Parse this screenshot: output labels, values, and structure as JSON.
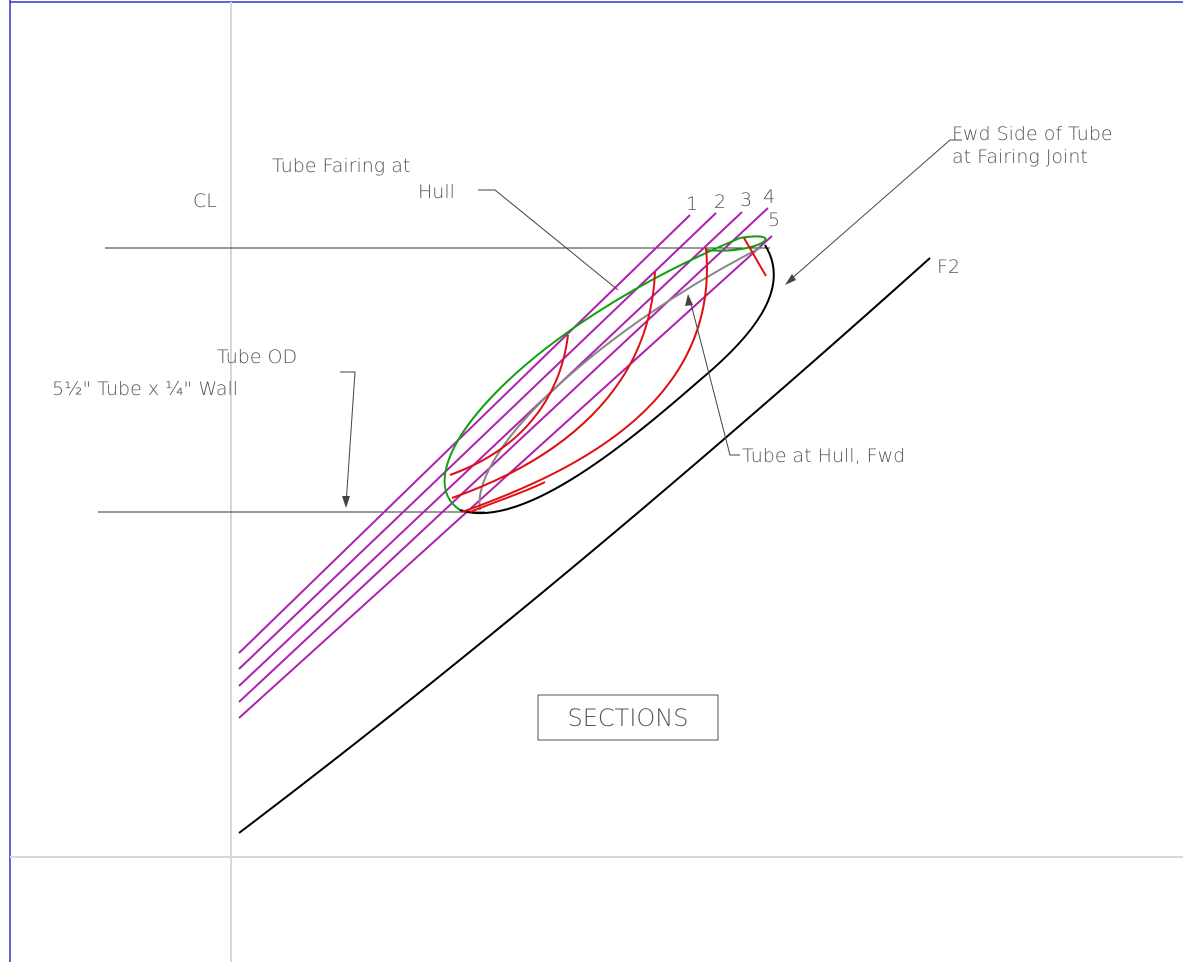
{
  "drawing": {
    "labels": {
      "cl": "CL",
      "fairing_1": "Tube Fairing at",
      "fairing_2": "Hull",
      "fwd_side_1": "Fwd Side of Tube",
      "fwd_side_2": "at Fairing Joint",
      "tube_od_1": "Tube OD",
      "tube_od_2": "5½\" Tube x ¼\" Wall",
      "tube_hull": "Tube at Hull, Fwd",
      "frame": "F2",
      "sections": "SECTIONS"
    },
    "section_numbers": [
      "1",
      "2",
      "3",
      "4",
      "5"
    ]
  }
}
